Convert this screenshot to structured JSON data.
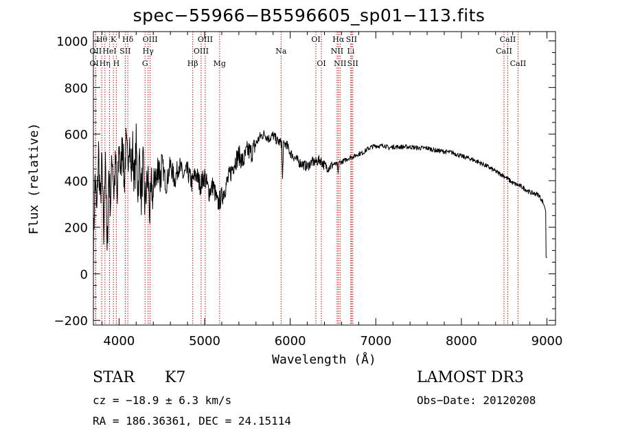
{
  "title": "spec−55966−B5596605_sp01−113.fits",
  "info": {
    "object_class": "STAR",
    "subclass": "K7",
    "survey": "LAMOST DR3",
    "cz_text": "cz = −18.9 ± 6.3 km/s",
    "obs_date_text": "Obs−Date: 20120208",
    "radec_text": "RA = 186.36361, DEC =  24.15114"
  },
  "chart_data": {
    "type": "line",
    "title": "spec−55966−B5596605_sp01−113.fits",
    "xlabel": "Wavelength (Å)",
    "ylabel": "Flux (relative)",
    "xlim": [
      3700,
      9100
    ],
    "ylim": [
      -220,
      1040
    ],
    "x_ticks": [
      4000,
      5000,
      6000,
      7000,
      8000,
      9000
    ],
    "y_ticks": [
      -200,
      0,
      200,
      400,
      600,
      800,
      1000
    ],
    "x_tick_labels": [
      "4000",
      "5000",
      "6000",
      "7000",
      "8000",
      "9000"
    ],
    "y_tick_labels": [
      "−200",
      "0",
      "200",
      "400",
      "600",
      "800",
      "1000"
    ],
    "line_color": "#000000",
    "marker_color": "#cc0000",
    "line_markers": [
      {
        "label": "Hθ",
        "wavelength": 3798,
        "row": 1
      },
      {
        "label": "OII",
        "wavelength": 3727,
        "row": 2
      },
      {
        "label": "OII",
        "wavelength": 3727,
        "row": 3
      },
      {
        "label": "Hη",
        "wavelength": 3835,
        "row": 3
      },
      {
        "label": "K",
        "wavelength": 3934,
        "row": 1
      },
      {
        "label": "HeI",
        "wavelength": 3889,
        "row": 2
      },
      {
        "label": "H",
        "wavelength": 3968,
        "row": 3
      },
      {
        "label": "Hδ",
        "wavelength": 4102,
        "row": 1
      },
      {
        "label": "SII",
        "wavelength": 4072,
        "row": 2
      },
      {
        "label": "OIII",
        "wavelength": 4363,
        "row": 1
      },
      {
        "label": "Hγ",
        "wavelength": 4340,
        "row": 2
      },
      {
        "label": "G",
        "wavelength": 4304,
        "row": 3
      },
      {
        "label": "Hβ",
        "wavelength": 4861,
        "row": 3
      },
      {
        "label": "OIII",
        "wavelength": 5007,
        "row": 1
      },
      {
        "label": "OIII",
        "wavelength": 4959,
        "row": 2
      },
      {
        "label": "Mg",
        "wavelength": 5175,
        "row": 3
      },
      {
        "label": "Na",
        "wavelength": 5893,
        "row": 2
      },
      {
        "label": "OI",
        "wavelength": 6300,
        "row": 1
      },
      {
        "label": "OI",
        "wavelength": 6364,
        "row": 3
      },
      {
        "label": "Hα",
        "wavelength": 6563,
        "row": 1
      },
      {
        "label": "NII",
        "wavelength": 6548,
        "row": 2
      },
      {
        "label": "NII",
        "wavelength": 6583,
        "row": 3
      },
      {
        "label": "SII",
        "wavelength": 6716,
        "row": 1
      },
      {
        "label": "Li",
        "wavelength": 6708,
        "row": 2
      },
      {
        "label": "SII",
        "wavelength": 6731,
        "row": 3
      },
      {
        "label": "CaII",
        "wavelength": 8542,
        "row": 1
      },
      {
        "label": "CaII",
        "wavelength": 8498,
        "row": 2
      },
      {
        "label": "CaII",
        "wavelength": 8662,
        "row": 3
      }
    ],
    "series": [
      {
        "name": "flux",
        "x": [
          3700,
          3720,
          3740,
          3760,
          3780,
          3800,
          3820,
          3840,
          3860,
          3880,
          3900,
          3920,
          3940,
          3960,
          3980,
          4000,
          4020,
          4040,
          4060,
          4080,
          4100,
          4120,
          4140,
          4160,
          4180,
          4200,
          4220,
          4240,
          4260,
          4280,
          4300,
          4320,
          4340,
          4360,
          4380,
          4400,
          4420,
          4440,
          4460,
          4480,
          4500,
          4550,
          4600,
          4650,
          4700,
          4750,
          4800,
          4850,
          4900,
          4950,
          5000,
          5050,
          5100,
          5150,
          5200,
          5250,
          5300,
          5350,
          5400,
          5450,
          5500,
          5550,
          5600,
          5650,
          5700,
          5750,
          5800,
          5850,
          5900,
          5910,
          5920,
          5950,
          6000,
          6050,
          6100,
          6150,
          6200,
          6250,
          6300,
          6350,
          6400,
          6450,
          6500,
          6550,
          6560,
          6570,
          6600,
          6650,
          6700,
          6750,
          6800,
          6850,
          6900,
          6950,
          7000,
          7050,
          7100,
          7150,
          7200,
          7300,
          7400,
          7500,
          7600,
          7700,
          7800,
          7900,
          8000,
          8100,
          8200,
          8300,
          8400,
          8500,
          8600,
          8700,
          8800,
          8850,
          8900,
          8950,
          8970,
          8985,
          8990,
          9000
        ],
        "y": [
          100,
          420,
          250,
          530,
          300,
          480,
          150,
          560,
          60,
          440,
          300,
          520,
          350,
          480,
          300,
          560,
          420,
          600,
          380,
          550,
          480,
          600,
          420,
          540,
          380,
          560,
          360,
          500,
          320,
          480,
          300,
          360,
          420,
          250,
          380,
          320,
          450,
          380,
          500,
          400,
          480,
          380,
          470,
          400,
          470,
          420,
          440,
          390,
          430,
          380,
          420,
          350,
          380,
          300,
          330,
          380,
          430,
          480,
          510,
          480,
          530,
          520,
          560,
          590,
          600,
          580,
          595,
          570,
          560,
          400,
          550,
          560,
          520,
          500,
          480,
          470,
          460,
          480,
          480,
          490,
          465,
          455,
          470,
          470,
          430,
          480,
          480,
          490,
          500,
          505,
          515,
          520,
          535,
          545,
          550,
          548,
          552,
          540,
          545,
          545,
          545,
          540,
          540,
          530,
          525,
          520,
          505,
          495,
          480,
          462,
          440,
          420,
          390,
          375,
          350,
          345,
          340,
          310,
          290,
          270,
          70,
          70
        ]
      }
    ]
  }
}
